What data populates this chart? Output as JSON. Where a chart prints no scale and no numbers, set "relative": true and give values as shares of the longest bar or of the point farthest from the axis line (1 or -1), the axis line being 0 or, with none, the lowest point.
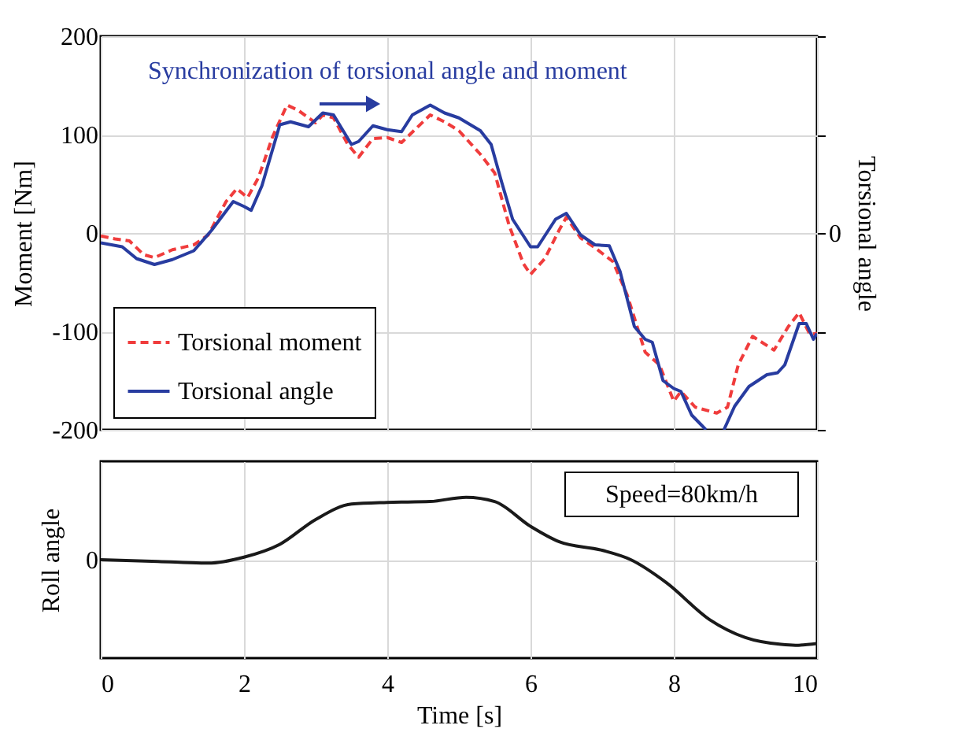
{
  "chart_data": [
    {
      "type": "line",
      "ylabel": "Moment [Nm]",
      "y2label": "Torsional angle",
      "xlim": [
        0,
        10
      ],
      "xticks": [
        0,
        2,
        4,
        6,
        8,
        10
      ],
      "ylim": [
        -200,
        200
      ],
      "yticks": [
        -200,
        -100,
        0,
        100,
        200
      ],
      "tick_labels": "y",
      "grid": true,
      "legend": "bottom left",
      "annotations": [
        "Synchronization of torsional angle and moment",
        "0"
      ],
      "series": [
        {
          "name": "Torsional moment",
          "color": "#f03c3c",
          "line_style": "dashed",
          "x": [
            0,
            0.2,
            0.4,
            0.6,
            0.75,
            1.0,
            1.3,
            1.5,
            1.75,
            1.9,
            2.05,
            2.2,
            2.4,
            2.6,
            2.75,
            3.0,
            3.1,
            3.25,
            3.45,
            3.6,
            3.8,
            4.0,
            4.2,
            4.4,
            4.6,
            4.8,
            5.0,
            5.3,
            5.5,
            5.7,
            5.9,
            6.0,
            6.2,
            6.4,
            6.5,
            6.7,
            6.9,
            7.15,
            7.35,
            7.6,
            7.8,
            8.0,
            8.1,
            8.3,
            8.6,
            8.75,
            8.9,
            9.1,
            9.4,
            9.6,
            9.75,
            9.9,
            10
          ],
          "values": [
            -3,
            -6,
            -8,
            -22,
            -25,
            -17,
            -12,
            -2,
            32,
            45,
            36,
            56,
            98,
            130,
            125,
            112,
            120,
            117,
            90,
            77,
            96,
            97,
            92,
            106,
            120,
            113,
            104,
            80,
            61,
            8,
            -31,
            -42,
            -26,
            3,
            16,
            -5,
            -15,
            -29,
            -63,
            -121,
            -134,
            -171,
            -161,
            -177,
            -183,
            -177,
            -134,
            -105,
            -119,
            -95,
            -81,
            -103,
            -102
          ]
        },
        {
          "name": "Torsional angle",
          "color": "#283ca0",
          "line_style": "solid",
          "x": [
            0,
            0.3,
            0.5,
            0.75,
            1.0,
            1.3,
            1.55,
            1.85,
            2.0,
            2.1,
            2.25,
            2.5,
            2.65,
            2.9,
            3.1,
            3.25,
            3.5,
            3.6,
            3.8,
            4.0,
            4.2,
            4.35,
            4.6,
            4.8,
            5.0,
            5.3,
            5.45,
            5.6,
            5.75,
            6.0,
            6.1,
            6.35,
            6.5,
            6.7,
            6.9,
            7.1,
            7.25,
            7.45,
            7.6,
            7.7,
            7.85,
            8.0,
            8.1,
            8.25,
            8.45,
            8.55,
            8.7,
            8.85,
            9.05,
            9.3,
            9.45,
            9.55,
            9.75,
            9.85,
            9.95,
            10
          ],
          "values": [
            -10,
            -14,
            -26,
            -32,
            -27,
            -18,
            3,
            32,
            27,
            23,
            48,
            110,
            113,
            108,
            122,
            120,
            90,
            93,
            109,
            105,
            103,
            120,
            130,
            122,
            117,
            104,
            90,
            51,
            14,
            -14,
            -14,
            14,
            20,
            -2,
            -12,
            -13,
            -39,
            -95,
            -108,
            -111,
            -150,
            -158,
            -161,
            -185,
            -200,
            null,
            -200,
            -176,
            -156,
            -144,
            -142,
            -134,
            -92,
            -92,
            -108,
            -102
          ]
        }
      ]
    },
    {
      "type": "line",
      "xlabel": "Time [s]",
      "ylabel": "Roll angle",
      "relative": true,
      "xlim": [
        0,
        10
      ],
      "xticks": [
        0,
        2,
        4,
        6,
        8,
        10
      ],
      "grid": true,
      "annotations": [
        "Speed=80km/h",
        "0"
      ],
      "series": [
        {
          "color": "#1a1a1a",
          "x": [
            0,
            0.8,
            1.5,
            2.0,
            2.5,
            3.0,
            3.5,
            4.0,
            4.6,
            5.1,
            5.5,
            6.0,
            6.4,
            7.0,
            7.4,
            7.9,
            8.5,
            9.0,
            9.5,
            9.7,
            10
          ],
          "values": [
            0,
            -0.02,
            -0.04,
            0.03,
            0.18,
            0.47,
            0.65,
            0.67,
            0.68,
            0.73,
            0.68,
            0.39,
            0.21,
            0.11,
            0,
            -0.27,
            -0.7,
            -0.91,
            -0.99,
            -1,
            -0.98
          ]
        }
      ]
    }
  ]
}
